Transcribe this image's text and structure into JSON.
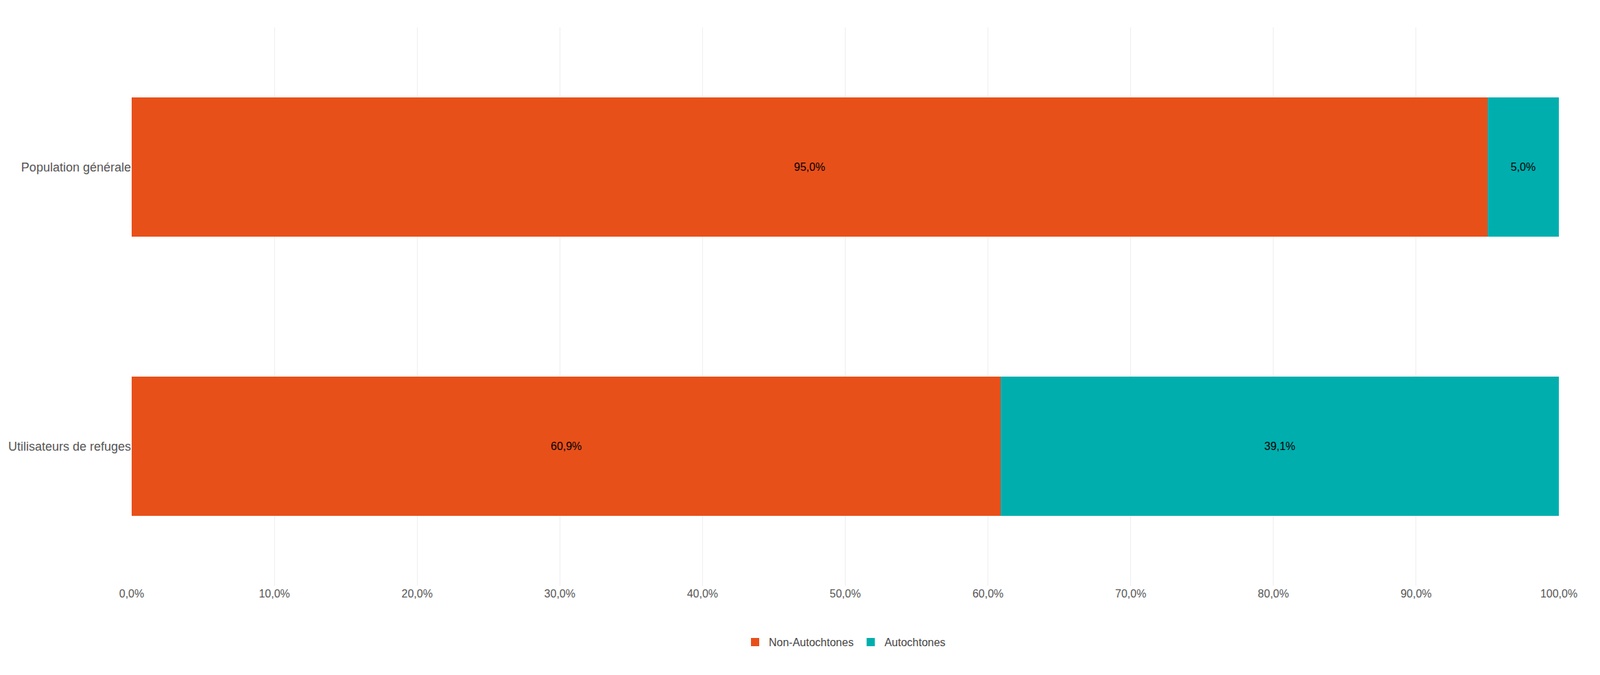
{
  "chart_data": {
    "type": "bar",
    "orientation": "horizontal",
    "stacked": true,
    "categories": [
      "Population générale",
      "Utilisateurs de refuges"
    ],
    "series": [
      {
        "name": "Non-Autochtones",
        "color": "#E8501A",
        "values": [
          95.0,
          60.9
        ],
        "value_labels": [
          "95,0%",
          "60,9%"
        ]
      },
      {
        "name": "Autochtones",
        "color": "#00AEAE",
        "values": [
          5.0,
          39.1
        ],
        "value_labels": [
          "5,0%",
          "39,1%"
        ]
      }
    ],
    "xlim": [
      0,
      100
    ],
    "xticks": [
      {
        "value": 0,
        "label": "0,0%"
      },
      {
        "value": 10,
        "label": "10,0%"
      },
      {
        "value": 20,
        "label": "20,0%"
      },
      {
        "value": 30,
        "label": "30,0%"
      },
      {
        "value": 40,
        "label": "40,0%"
      },
      {
        "value": 50,
        "label": "50,0%"
      },
      {
        "value": 60,
        "label": "60,0%"
      },
      {
        "value": 70,
        "label": "70,0%"
      },
      {
        "value": 80,
        "label": "80,0%"
      },
      {
        "value": 90,
        "label": "90,0%"
      },
      {
        "value": 100,
        "label": "100,0%"
      }
    ],
    "grid": true,
    "legend": "bottom",
    "data_labels": true
  }
}
